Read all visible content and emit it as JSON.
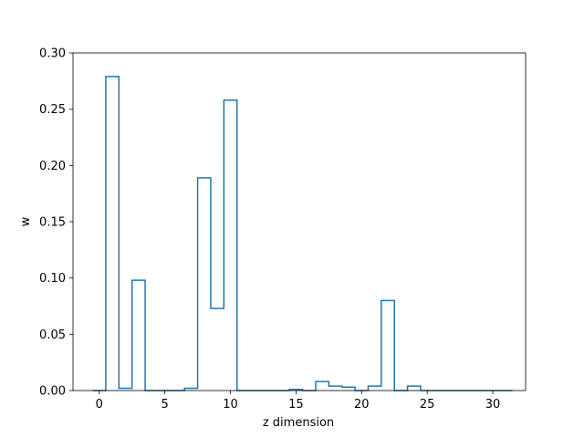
{
  "chart_data": {
    "type": "bar",
    "style": "step-histogram",
    "xlabel": "z dimension",
    "ylabel": "w",
    "xlim": [
      -2,
      32.5
    ],
    "ylim": [
      0,
      0.3
    ],
    "xticks": [
      0,
      5,
      10,
      15,
      20,
      25,
      30
    ],
    "yticks": [
      0.0,
      0.05,
      0.1,
      0.15,
      0.2,
      0.25,
      0.3
    ],
    "ytick_labels": [
      "0.00",
      "0.05",
      "0.10",
      "0.15",
      "0.20",
      "0.25",
      "0.30"
    ],
    "xtick_labels": [
      "0",
      "5",
      "10",
      "15",
      "20",
      "25",
      "30"
    ],
    "bin_start": 0,
    "bin_width": 1,
    "bin_offset": -0.5,
    "series": [
      {
        "color": "#1f77b4",
        "values": [
          0.0,
          0.279,
          0.002,
          0.098,
          0.0,
          0.0,
          0.0,
          0.002,
          0.189,
          0.073,
          0.258,
          0.0,
          0.0,
          0.0,
          0.0,
          0.001,
          0.0,
          0.008,
          0.004,
          0.003,
          0.0,
          0.004,
          0.08,
          0.0,
          0.004,
          0.0,
          0.0,
          0.0,
          0.0,
          0.0,
          0.0,
          0.0
        ]
      }
    ],
    "grid": false
  }
}
